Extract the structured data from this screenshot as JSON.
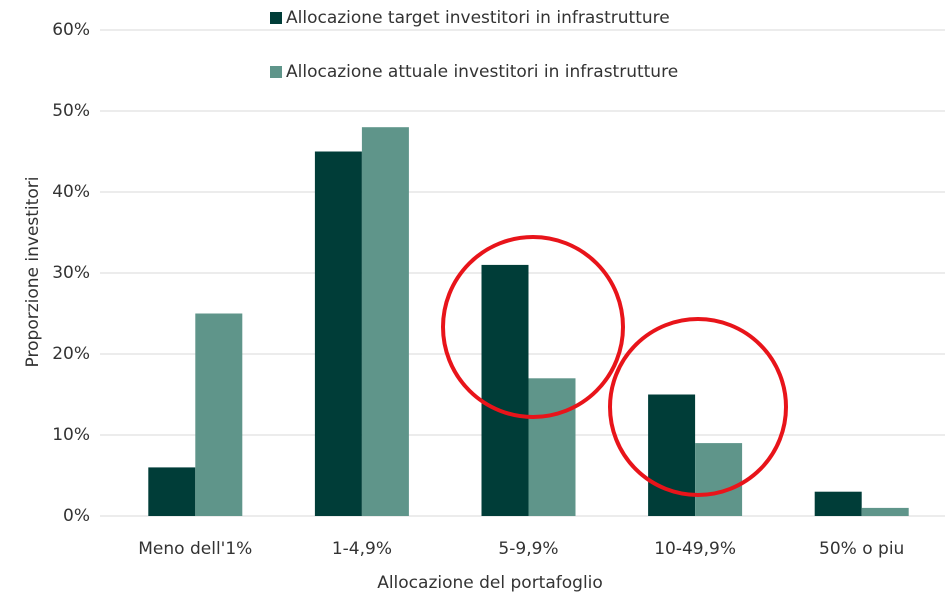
{
  "chart_data": {
    "type": "bar",
    "categories": [
      "Meno dell'1%",
      "1-4,9%",
      "5-9,9%",
      "10-49,9%",
      "50% o piu"
    ],
    "series": [
      {
        "name": "Allocazione target investitori in infrastrutture",
        "color": "#003d38",
        "values": [
          6,
          45,
          31,
          15,
          3
        ]
      },
      {
        "name": "Allocazione attuale investitori in infrastrutture",
        "color": "#5f958a",
        "values": [
          25,
          48,
          17,
          9,
          1
        ]
      }
    ],
    "x_label": "Allocazione del portafoglio",
    "y_label": "Proporzione investitori",
    "ylim": [
      0,
      60
    ],
    "yticks": [
      {
        "value": 0,
        "label": "0%"
      },
      {
        "value": 10,
        "label": "10%"
      },
      {
        "value": 20,
        "label": "20%"
      },
      {
        "value": 30,
        "label": "30%"
      },
      {
        "value": 40,
        "label": "40%"
      },
      {
        "value": 50,
        "label": "50%"
      },
      {
        "value": 60,
        "label": "60%"
      }
    ],
    "grid": true
  }
}
